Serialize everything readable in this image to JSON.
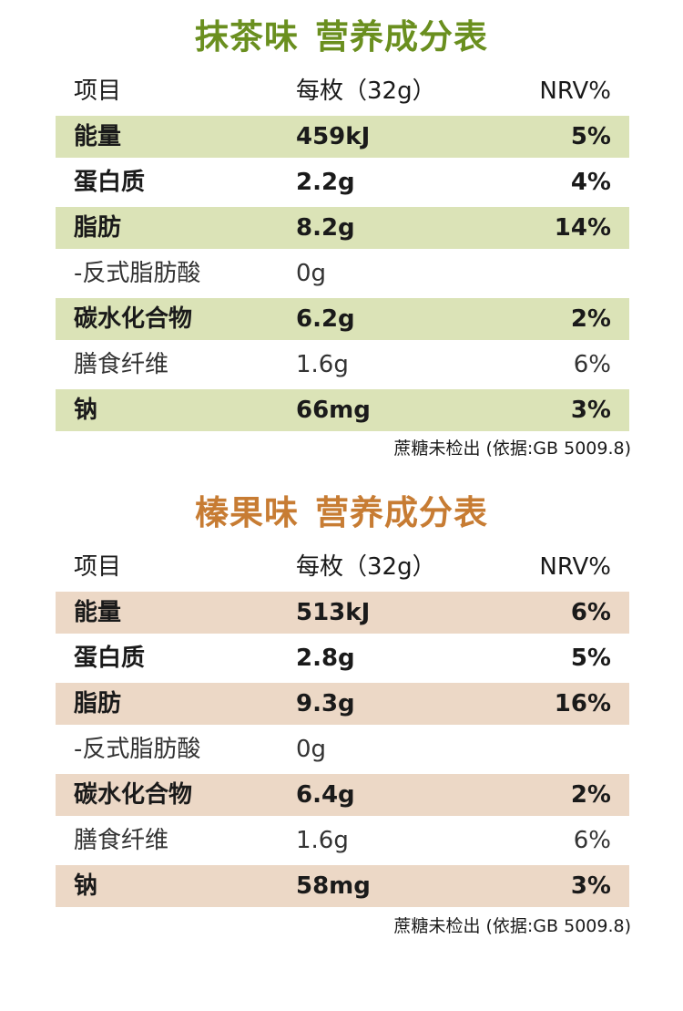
{
  "colors": {
    "matcha_title": "#6a8f1f",
    "matcha_row": "#dbe3b7",
    "hazelnut_title": "#c77c33",
    "hazelnut_row": "#ecd8c6"
  },
  "matcha": {
    "title_a": "抹茶味",
    "title_b": "营养成分表",
    "header": [
      "项目",
      "每枚（32g）",
      "NRV%"
    ],
    "rows": [
      [
        "能量",
        "459kJ",
        "5%"
      ],
      [
        "蛋白质",
        "2.2g",
        "4%"
      ],
      [
        "脂肪",
        "8.2g",
        "14%"
      ],
      [
        "-反式脂肪酸",
        "0g",
        ""
      ],
      [
        "碳水化合物",
        "6.2g",
        "2%"
      ],
      [
        "膳食纤维",
        "1.6g",
        "6%"
      ],
      [
        "钠",
        "66mg",
        "3%"
      ]
    ],
    "footnote": "蔗糖未检出 (依据:GB 5009.8)"
  },
  "hazelnut": {
    "title_a": "榛果味",
    "title_b": "营养成分表",
    "header": [
      "项目",
      "每枚（32g）",
      "NRV%"
    ],
    "rows": [
      [
        "能量",
        "513kJ",
        "6%"
      ],
      [
        "蛋白质",
        "2.8g",
        "5%"
      ],
      [
        "脂肪",
        "9.3g",
        "16%"
      ],
      [
        "-反式脂肪酸",
        "0g",
        ""
      ],
      [
        "碳水化合物",
        "6.4g",
        "2%"
      ],
      [
        "膳食纤维",
        "1.6g",
        "6%"
      ],
      [
        "钠",
        "58mg",
        "3%"
      ]
    ],
    "footnote": "蔗糖未检出 (依据:GB 5009.8)"
  }
}
